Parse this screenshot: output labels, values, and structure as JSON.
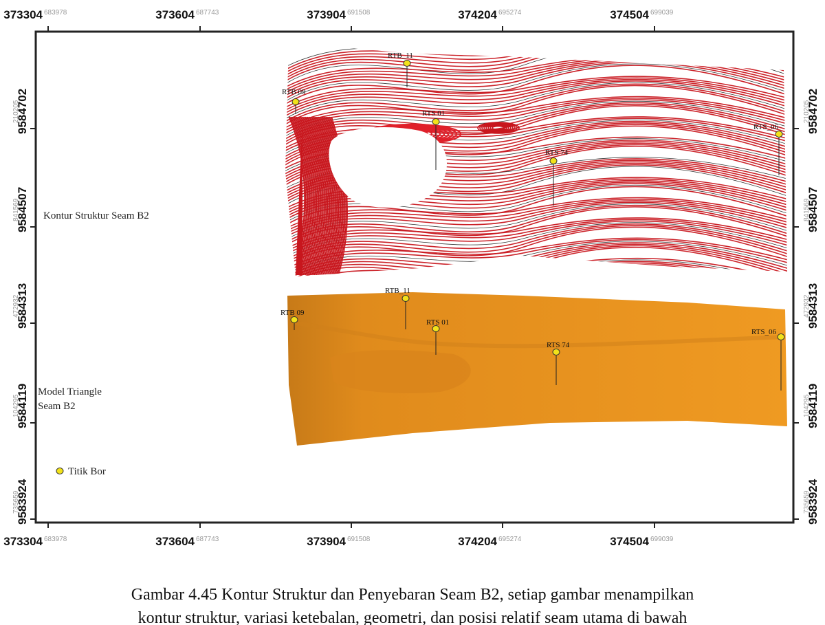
{
  "map": {
    "x_ticks": [
      {
        "main": "373304",
        "sub": "683978"
      },
      {
        "main": "373604",
        "sub": "687743"
      },
      {
        "main": "373904",
        "sub": "691508"
      },
      {
        "main": "374204",
        "sub": "695274"
      },
      {
        "main": "374504",
        "sub": "699039"
      }
    ],
    "y_ticks": [
      {
        "main": "9584702",
        "sub": "210205"
      },
      {
        "main": "9584507",
        "sub": "841569"
      },
      {
        "main": "9584313",
        "sub": "472932"
      },
      {
        "main": "9584119",
        "sub": "104295"
      },
      {
        "main": "9583924",
        "sub": "735659"
      }
    ],
    "panels": {
      "contour_label": "Kontur Struktur Seam B2",
      "model_label_line1": "Model Triangle",
      "model_label_line2": "Seam B2",
      "legend_label": "Titik Bor"
    },
    "boreholes_top": [
      "RTB_11",
      "RTB 09",
      "RTS 01",
      "RTS 74",
      "RTS_06"
    ],
    "boreholes_bottom": [
      "RTB_11",
      "RTB 09",
      "RTS 01",
      "RTS 74",
      "RTS_06"
    ],
    "colors": {
      "contour_red": "#c8161d",
      "contour_dark": "#2a2a2a",
      "model_orange": "#e8921e",
      "model_shadow": "#c77a18",
      "borehole_fill": "#f2e21a"
    }
  },
  "caption": {
    "line1": "Gambar 4.45 Kontur Struktur dan Penyebaran Seam B2, setiap gambar menampilkan",
    "line2": "kontur struktur, variasi ketebalan, geometri, dan posisi relatif seam utama di bawah"
  }
}
